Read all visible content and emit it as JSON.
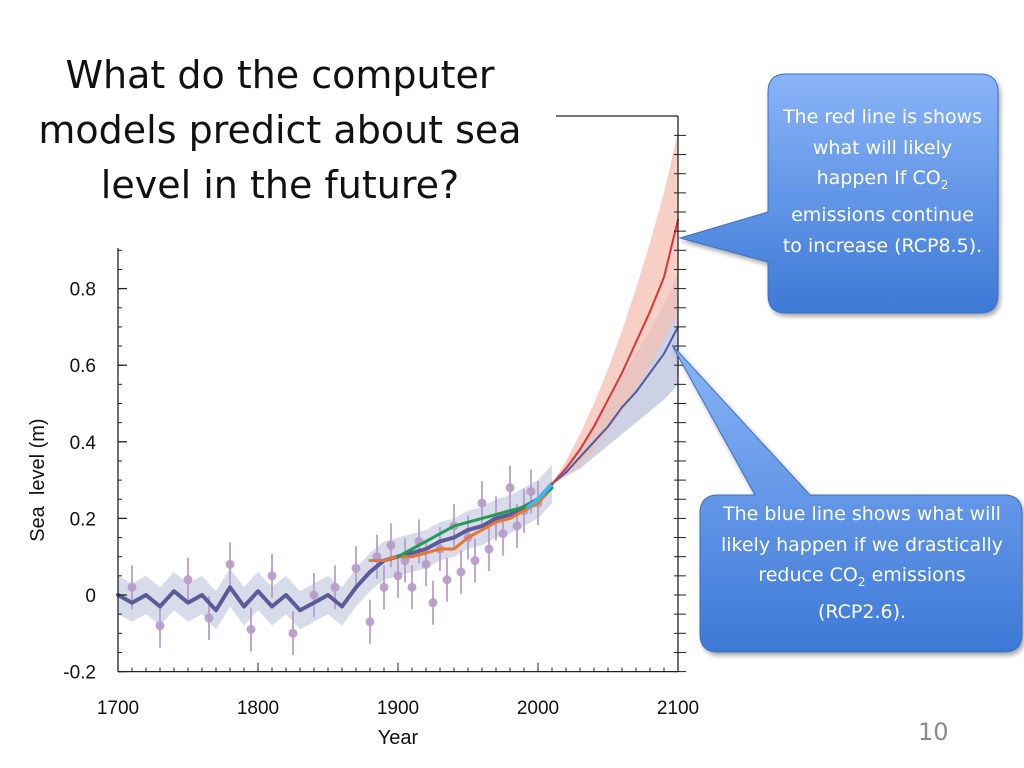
{
  "slide": {
    "title": "What do the computer models predict about sea level in the future?",
    "page_number": "10"
  },
  "callouts": {
    "red": {
      "pre": "The red line is shows what will likely happen If CO",
      "sub": "2",
      "post": " emissions continue to increase (RCP8.5)."
    },
    "blue": {
      "pre": "The blue line shows what will likely happen if we drastically reduce CO",
      "sub": "2",
      "post": " emissions (RCP2.6)."
    }
  },
  "colors": {
    "callout_fill_top": "#8ab4f8",
    "callout_fill_bottom": "#3d79d6",
    "rcp85_line": "#d8363a",
    "rcp85_band": "#f4bfb1",
    "rcp26_line": "#4d5aa6",
    "rcp26_band": "#b7bdd9",
    "historic_line": "#5b5b9c",
    "historic_points": "#b79ac8",
    "tide_green": "#1f9d55",
    "tide_orange": "#e8762d",
    "satellite_cyan": "#3fb8e8"
  },
  "chart_data": {
    "type": "line",
    "title": "",
    "xlabel": "Year",
    "ylabel": "Sea  level (m)",
    "xlim": [
      1700,
      2100
    ],
    "ylim": [
      -0.2,
      1.0
    ],
    "x_ticks": [
      1700,
      1800,
      1900,
      2000,
      2100
    ],
    "y_ticks": [
      -0.2,
      0,
      0.2,
      0.4,
      0.6,
      0.8
    ],
    "y_tick_labels": [
      "-0.2",
      "0",
      "0.2",
      "0.4",
      "0.6",
      "0.8"
    ],
    "grid": false,
    "series": [
      {
        "key": "historic",
        "x": [
          1700,
          1710,
          1720,
          1730,
          1740,
          1750,
          1760,
          1770,
          1780,
          1790,
          1800,
          1810,
          1820,
          1830,
          1840,
          1850,
          1860,
          1870,
          1880,
          1890,
          1900,
          1910,
          1920,
          1930,
          1940,
          1950,
          1960,
          1970,
          1980,
          1990,
          2000,
          2010
        ],
        "y": [
          0.0,
          -0.02,
          0.0,
          -0.03,
          0.01,
          -0.02,
          0.0,
          -0.04,
          0.02,
          -0.03,
          0.01,
          -0.03,
          0.0,
          -0.04,
          -0.02,
          0.0,
          -0.03,
          0.02,
          0.06,
          0.09,
          0.1,
          0.11,
          0.12,
          0.14,
          0.15,
          0.17,
          0.18,
          0.2,
          0.21,
          0.23,
          0.25,
          0.29
        ]
      },
      {
        "key": "tide_green",
        "x": [
          1900,
          1910,
          1920,
          1930,
          1940,
          1950,
          1960,
          1970,
          1980,
          1990,
          2000,
          2010
        ],
        "y": [
          0.1,
          0.12,
          0.14,
          0.16,
          0.18,
          0.19,
          0.2,
          0.21,
          0.22,
          0.23,
          0.25,
          0.28
        ]
      },
      {
        "key": "tide_orange",
        "x": [
          1880,
          1890,
          1900,
          1910,
          1920,
          1930,
          1940,
          1950,
          1960,
          1970,
          1980,
          1990,
          2000,
          2010
        ],
        "y": [
          0.09,
          0.09,
          0.1,
          0.1,
          0.11,
          0.12,
          0.12,
          0.15,
          0.17,
          0.19,
          0.2,
          0.22,
          0.24,
          0.28
        ]
      },
      {
        "key": "satellite",
        "x": [
          1993,
          2000,
          2010
        ],
        "y": [
          0.23,
          0.25,
          0.29
        ]
      },
      {
        "key": "rcp85",
        "x": [
          2010,
          2020,
          2030,
          2040,
          2050,
          2060,
          2070,
          2080,
          2090,
          2100
        ],
        "y": [
          0.29,
          0.33,
          0.38,
          0.44,
          0.51,
          0.58,
          0.66,
          0.74,
          0.83,
          0.98
        ],
        "lower": [
          0.29,
          0.31,
          0.34,
          0.38,
          0.43,
          0.48,
          0.54,
          0.6,
          0.67,
          0.74
        ],
        "upper": [
          0.29,
          0.35,
          0.42,
          0.5,
          0.59,
          0.69,
          0.8,
          0.92,
          1.05,
          1.21
        ]
      },
      {
        "key": "rcp26",
        "x": [
          2010,
          2020,
          2030,
          2040,
          2050,
          2060,
          2070,
          2080,
          2090,
          2100
        ],
        "y": [
          0.29,
          0.32,
          0.36,
          0.4,
          0.44,
          0.49,
          0.53,
          0.58,
          0.63,
          0.7
        ],
        "lower": [
          0.29,
          0.31,
          0.33,
          0.36,
          0.39,
          0.42,
          0.45,
          0.48,
          0.51,
          0.55
        ],
        "upper": [
          0.29,
          0.34,
          0.39,
          0.45,
          0.51,
          0.57,
          0.63,
          0.69,
          0.76,
          0.84
        ]
      }
    ],
    "points": {
      "key": "historic_points",
      "x": [
        1710,
        1730,
        1750,
        1765,
        1780,
        1795,
        1810,
        1825,
        1840,
        1855,
        1870,
        1880,
        1885,
        1890,
        1895,
        1900,
        1905,
        1910,
        1915,
        1920,
        1925,
        1930,
        1935,
        1940,
        1945,
        1950,
        1955,
        1960,
        1965,
        1970,
        1975,
        1980,
        1985,
        1990,
        1995,
        2000
      ],
      "y": [
        0.02,
        -0.08,
        0.04,
        -0.06,
        0.08,
        -0.09,
        0.05,
        -0.1,
        0.0,
        0.02,
        0.07,
        -0.07,
        0.1,
        0.02,
        0.13,
        0.05,
        0.09,
        0.02,
        0.14,
        0.08,
        -0.02,
        0.12,
        0.04,
        0.18,
        0.06,
        0.15,
        0.09,
        0.24,
        0.12,
        0.2,
        0.16,
        0.28,
        0.18,
        0.22,
        0.27,
        0.24
      ]
    }
  }
}
